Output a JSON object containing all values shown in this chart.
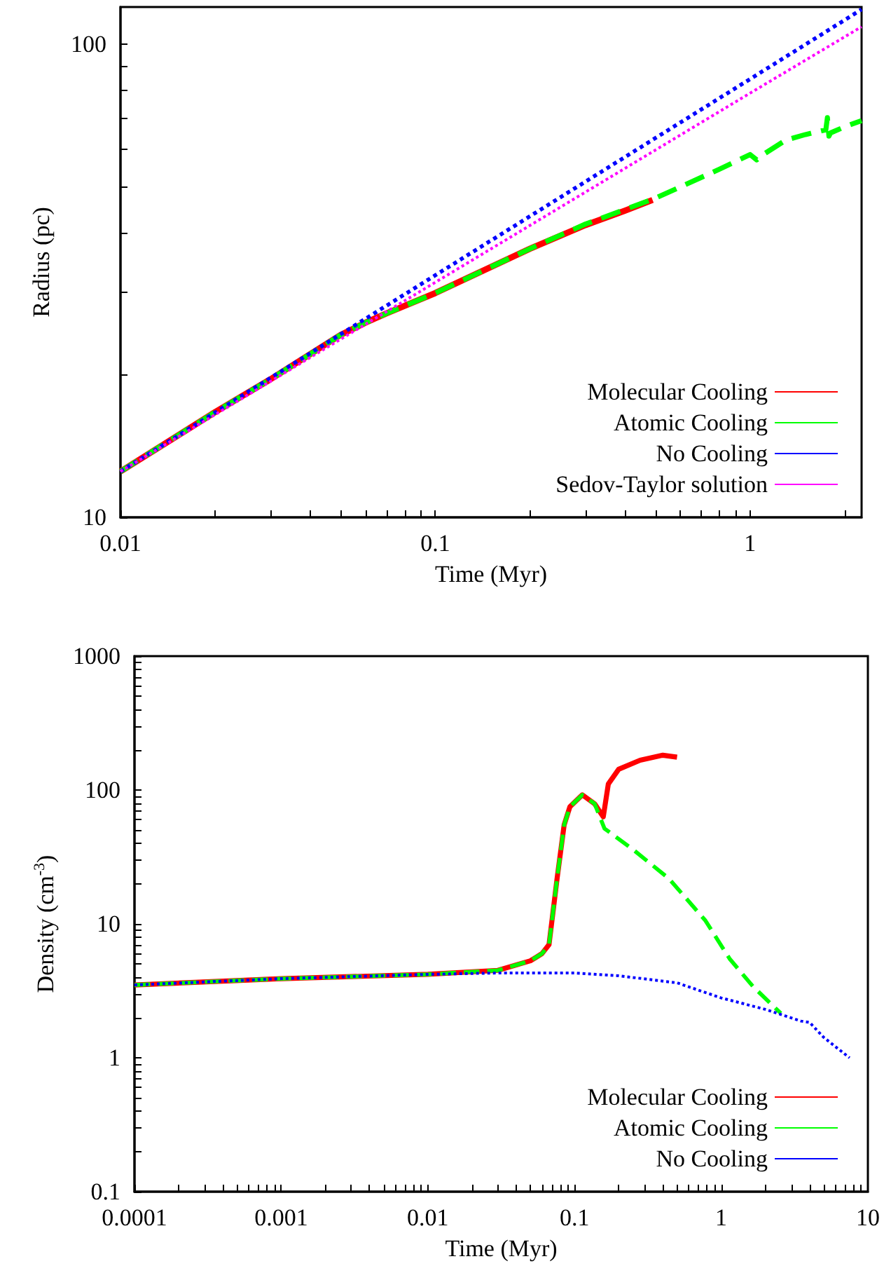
{
  "chart_data": [
    {
      "type": "line",
      "xlabel": "Time (Myr)",
      "ylabel": "Radius (pc)",
      "log": "xy",
      "grid": false,
      "legend": "bottom right",
      "xlim": [
        0.01,
        2.26
      ],
      "ylim": [
        10,
        120
      ],
      "xticks": [
        0.01,
        {
          "value": 0.02,
          "label": null
        },
        {
          "value": 0.03,
          "label": null
        },
        {
          "value": 0.04,
          "label": null
        },
        {
          "value": 0.05,
          "label": null
        },
        {
          "value": 0.06,
          "label": null
        },
        {
          "value": 0.07,
          "label": null
        },
        {
          "value": 0.08,
          "label": null
        },
        {
          "value": 0.09,
          "label": null
        },
        0.1,
        {
          "value": 0.2,
          "label": null
        },
        {
          "value": 0.3,
          "label": null
        },
        {
          "value": 0.4,
          "label": null
        },
        {
          "value": 0.5,
          "label": null
        },
        {
          "value": 0.6,
          "label": null
        },
        {
          "value": 0.7,
          "label": null
        },
        {
          "value": 0.8,
          "label": null
        },
        {
          "value": 0.9,
          "label": null
        },
        1,
        {
          "value": 2,
          "label": null
        }
      ],
      "yticks": [
        10,
        {
          "value": 20,
          "label": null
        },
        {
          "value": 30,
          "label": null
        },
        {
          "value": 40,
          "label": null
        },
        {
          "value": 50,
          "label": null
        },
        {
          "value": 60,
          "label": null
        },
        {
          "value": 70,
          "label": null
        },
        {
          "value": 80,
          "label": null
        },
        {
          "value": 90,
          "label": null
        },
        100
      ],
      "series": [
        {
          "name": "Molecular Cooling",
          "color": "#ff0000",
          "line_style": "solid",
          "x": [
            0.01,
            0.02,
            0.03,
            0.05,
            0.06,
            0.07,
            0.1,
            0.2,
            0.3,
            0.4,
            0.49
          ],
          "values": [
            12.5,
            16.7,
            19.6,
            24.3,
            25.8,
            27,
            29.8,
            37,
            41.5,
            44.5,
            46.9
          ]
        },
        {
          "name": "Atomic Cooling",
          "color": "#00ff00",
          "line_style": "dashed",
          "x": [
            0.01,
            0.02,
            0.03,
            0.05,
            0.06,
            0.07,
            0.1,
            0.2,
            0.3,
            0.5,
            0.8,
            1,
            1.05,
            1.1,
            1.3,
            1.5,
            1.74,
            1.76,
            1.78,
            1.8,
            2,
            2.26
          ],
          "values": [
            12.5,
            16.7,
            19.6,
            24.3,
            25.8,
            27,
            29.8,
            37,
            41.7,
            47.3,
            54.5,
            58.5,
            57,
            58.5,
            62.8,
            64.5,
            66,
            70,
            64,
            65,
            67,
            69
          ]
        },
        {
          "name": "No Cooling",
          "color": "#0000ff",
          "line_style": "dotted",
          "x": [
            0.01,
            0.1,
            1,
            2.26
          ],
          "values": [
            12.5,
            32.5,
            84.5,
            118.6
          ]
        },
        {
          "name": "Sedov-Taylor solution",
          "color": "#ff00ff",
          "line_style": "dotted",
          "x": [
            0.01,
            0.1,
            1,
            2.26
          ],
          "values": [
            12.5,
            31.4,
            78.9,
            109
          ]
        }
      ]
    },
    {
      "type": "line",
      "xlabel": "Time (Myr)",
      "ylabel": "Density (cm$^{-3}$)",
      "log": "xy",
      "grid": false,
      "legend": "bottom right",
      "xlim": [
        0.0001,
        10
      ],
      "ylim": [
        0.1,
        1000
      ],
      "xticks": [
        0.0001,
        {
          "value": 0.0002,
          "label": null
        },
        {
          "value": 0.0003,
          "label": null
        },
        {
          "value": 0.0004,
          "label": null
        },
        {
          "value": 0.0005,
          "label": null
        },
        {
          "value": 0.0006,
          "label": null
        },
        {
          "value": 0.0007,
          "label": null
        },
        {
          "value": 0.0008,
          "label": null
        },
        {
          "value": 0.0009,
          "label": null
        },
        0.001,
        {
          "value": 0.002,
          "label": null
        },
        {
          "value": 0.003,
          "label": null
        },
        {
          "value": 0.004,
          "label": null
        },
        {
          "value": 0.005,
          "label": null
        },
        {
          "value": 0.006,
          "label": null
        },
        {
          "value": 0.007,
          "label": null
        },
        {
          "value": 0.008,
          "label": null
        },
        {
          "value": 0.009,
          "label": null
        },
        0.01,
        {
          "value": 0.02,
          "label": null
        },
        {
          "value": 0.03,
          "label": null
        },
        {
          "value": 0.04,
          "label": null
        },
        {
          "value": 0.05,
          "label": null
        },
        {
          "value": 0.06,
          "label": null
        },
        {
          "value": 0.07,
          "label": null
        },
        {
          "value": 0.08,
          "label": null
        },
        {
          "value": 0.09,
          "label": null
        },
        0.1,
        {
          "value": 0.2,
          "label": null
        },
        {
          "value": 0.3,
          "label": null
        },
        {
          "value": 0.4,
          "label": null
        },
        {
          "value": 0.5,
          "label": null
        },
        {
          "value": 0.6,
          "label": null
        },
        {
          "value": 0.7,
          "label": null
        },
        {
          "value": 0.8,
          "label": null
        },
        {
          "value": 0.9,
          "label": null
        },
        1,
        {
          "value": 2,
          "label": null
        },
        {
          "value": 3,
          "label": null
        },
        {
          "value": 4,
          "label": null
        },
        {
          "value": 5,
          "label": null
        },
        {
          "value": 6,
          "label": null
        },
        {
          "value": 7,
          "label": null
        },
        {
          "value": 8,
          "label": null
        },
        {
          "value": 9,
          "label": null
        },
        10
      ],
      "yticks": [
        0.1,
        {
          "value": 0.2,
          "label": null
        },
        {
          "value": 0.3,
          "label": null
        },
        {
          "value": 0.4,
          "label": null
        },
        {
          "value": 0.5,
          "label": null
        },
        {
          "value": 0.6,
          "label": null
        },
        {
          "value": 0.7,
          "label": null
        },
        {
          "value": 0.8,
          "label": null
        },
        {
          "value": 0.9,
          "label": null
        },
        1,
        {
          "value": 2,
          "label": null
        },
        {
          "value": 3,
          "label": null
        },
        {
          "value": 4,
          "label": null
        },
        {
          "value": 5,
          "label": null
        },
        {
          "value": 6,
          "label": null
        },
        {
          "value": 7,
          "label": null
        },
        {
          "value": 8,
          "label": null
        },
        {
          "value": 9,
          "label": null
        },
        10,
        {
          "value": 20,
          "label": null
        },
        {
          "value": 30,
          "label": null
        },
        {
          "value": 40,
          "label": null
        },
        {
          "value": 50,
          "label": null
        },
        {
          "value": 60,
          "label": null
        },
        {
          "value": 70,
          "label": null
        },
        {
          "value": 80,
          "label": null
        },
        {
          "value": 90,
          "label": null
        },
        100,
        {
          "value": 200,
          "label": null
        },
        {
          "value": 300,
          "label": null
        },
        {
          "value": 400,
          "label": null
        },
        {
          "value": 500,
          "label": null
        },
        {
          "value": 600,
          "label": null
        },
        {
          "value": 700,
          "label": null
        },
        {
          "value": 800,
          "label": null
        },
        {
          "value": 900,
          "label": null
        },
        1000
      ],
      "series": [
        {
          "name": "Molecular Cooling",
          "color": "#ff0000",
          "line_style": "solid",
          "x": [
            0.0001,
            0.001,
            0.01,
            0.03,
            0.05,
            0.06,
            0.067,
            0.076,
            0.085,
            0.093,
            0.113,
            0.137,
            0.157,
            0.17,
            0.2,
            0.28,
            0.4,
            0.5
          ],
          "values": [
            3.5,
            3.9,
            4.2,
            4.5,
            5.3,
            6,
            7,
            21.7,
            55,
            75,
            92,
            79,
            63,
            111,
            143,
            167,
            182,
            176
          ]
        },
        {
          "name": "Atomic Cooling",
          "color": "#00ff00",
          "line_style": "dashed",
          "x": [
            0.0001,
            0.001,
            0.01,
            0.03,
            0.05,
            0.06,
            0.067,
            0.076,
            0.085,
            0.093,
            0.113,
            0.137,
            0.16,
            0.25,
            0.44,
            0.78,
            1.14,
            1.65,
            2.55
          ],
          "values": [
            3.5,
            3.9,
            4.2,
            4.5,
            5.3,
            6,
            7,
            21.7,
            55,
            75,
            92,
            79,
            51.6,
            36,
            21.8,
            10.6,
            5.5,
            3.4,
            2.15
          ]
        },
        {
          "name": "No Cooling",
          "color": "#0000ff",
          "line_style": "dotted",
          "x": [
            0.0001,
            0.001,
            0.01,
            0.03,
            0.1,
            0.2,
            0.5,
            1,
            2,
            3.5,
            4,
            5,
            7.5
          ],
          "values": [
            3.5,
            3.9,
            4.2,
            4.3,
            4.3,
            4.1,
            3.63,
            2.8,
            2.3,
            1.88,
            1.84,
            1.42,
            1
          ]
        }
      ]
    }
  ]
}
